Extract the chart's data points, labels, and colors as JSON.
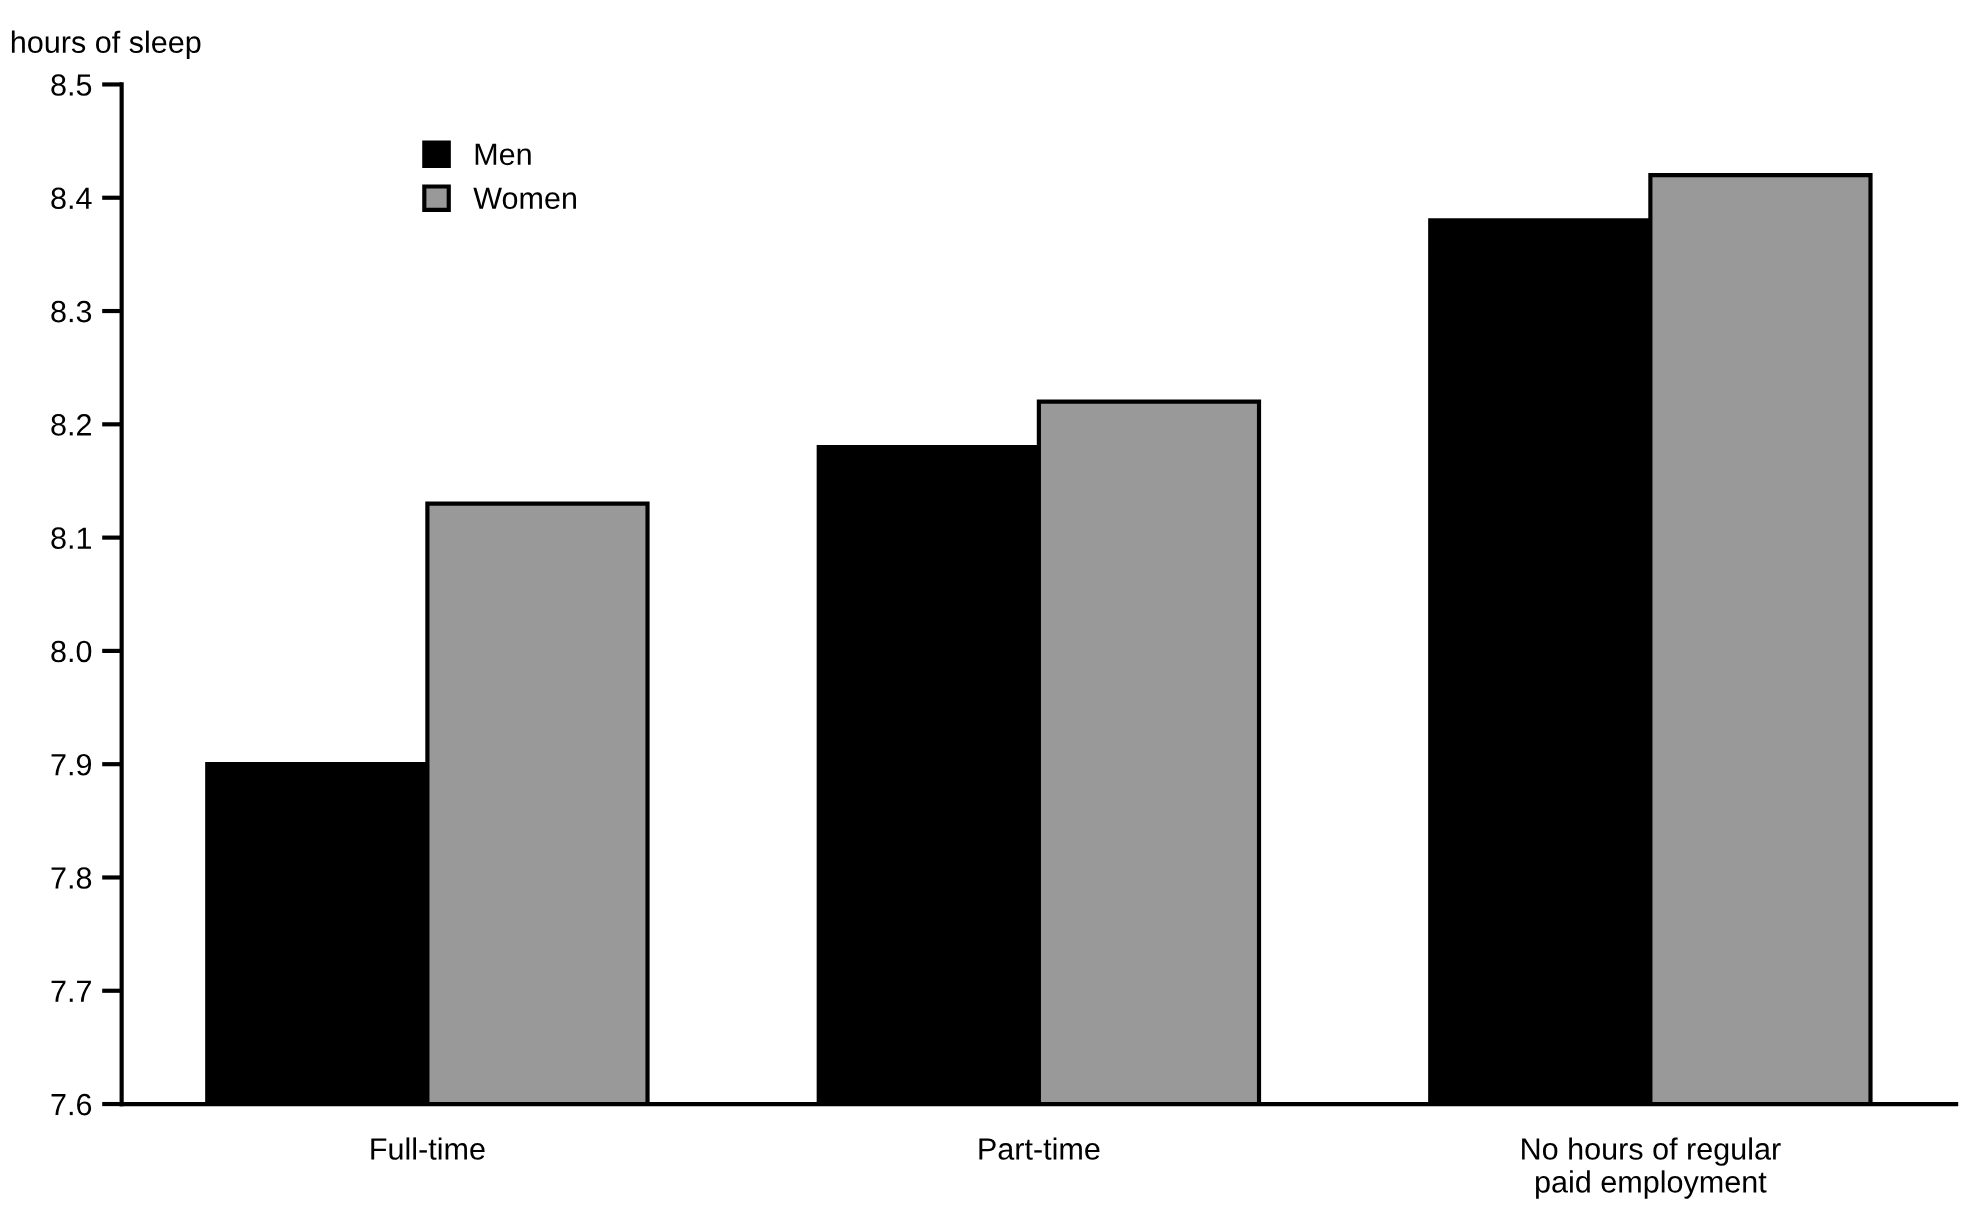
{
  "chart_data": {
    "type": "bar",
    "ylabel": "hours of sleep",
    "categories": [
      "Full-time",
      "Part-time",
      "No hours of regular\npaid employment"
    ],
    "series": [
      {
        "name": "Men",
        "color": "#000000",
        "values": [
          7.9,
          8.18,
          8.38
        ]
      },
      {
        "name": "Women",
        "color": "#999999",
        "values": [
          8.13,
          8.22,
          8.42
        ]
      }
    ],
    "ylim": [
      7.6,
      8.5
    ],
    "yticks": [
      7.6,
      7.7,
      7.8,
      7.9,
      {
        "value": 8,
        "label": "8.0"
      },
      8.1,
      8.2,
      8.3,
      8.4,
      8.5
    ],
    "grid": false,
    "legend": "top left"
  }
}
